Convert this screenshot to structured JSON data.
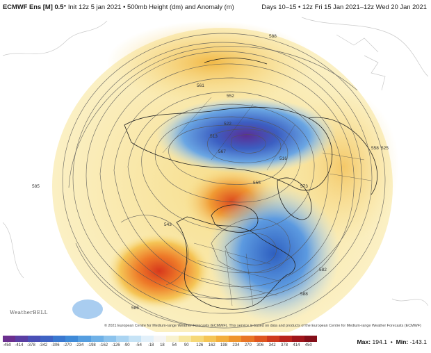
{
  "header": {
    "model": "ECMWF Ens [M] 0.5°",
    "description": "Init 12z 5 jan 2021 • 500mb Height (dm) and Anomaly (m)",
    "valid": "Days 10–15 • 12z Fri 15 Jan 2021–12z Wed 20 Jan 2021"
  },
  "map": {
    "contour_labels": [
      "588",
      "561",
      "552",
      "522",
      "513",
      "567",
      "585",
      "543",
      "555",
      "573",
      "558",
      "516",
      "525",
      "582",
      "588",
      "585"
    ],
    "copyright": "© 2021 European Centre for Medium-range Weather Forecasts (ECMWF). This service is based on data and products of the European Centre for Medium-range Weather Forecasts (ECMWF)",
    "watermark": "WeatherBELL"
  },
  "colorbar": {
    "ticks": [
      "-450",
      "-414",
      "-378",
      "-342",
      "-306",
      "-270",
      "-234",
      "-198",
      "-162",
      "-126",
      "-90",
      "-54",
      "-18",
      "18",
      "54",
      "90",
      "126",
      "162",
      "198",
      "234",
      "270",
      "306",
      "342",
      "378",
      "414",
      "450"
    ],
    "colors": [
      "#6b2f8f",
      "#5a3ea3",
      "#4a4fb6",
      "#3f63c4",
      "#3a78d0",
      "#3f8ad8",
      "#559ee0",
      "#6fb1e7",
      "#8cc3ed",
      "#aad4f2",
      "#c6e3f6",
      "#e2f0fa",
      "#f5f5f5",
      "#f8f2cf",
      "#f7e7a0",
      "#f6d877",
      "#f5c556",
      "#f3ae3d",
      "#ef942e",
      "#e97526",
      "#df5620",
      "#cf3a1d",
      "#b9231c",
      "#9f151b",
      "#840e19"
    ]
  },
  "stats": {
    "max_label": "Max:",
    "max_value": "194.1",
    "min_label": "Min:",
    "min_value": "-143.1"
  }
}
